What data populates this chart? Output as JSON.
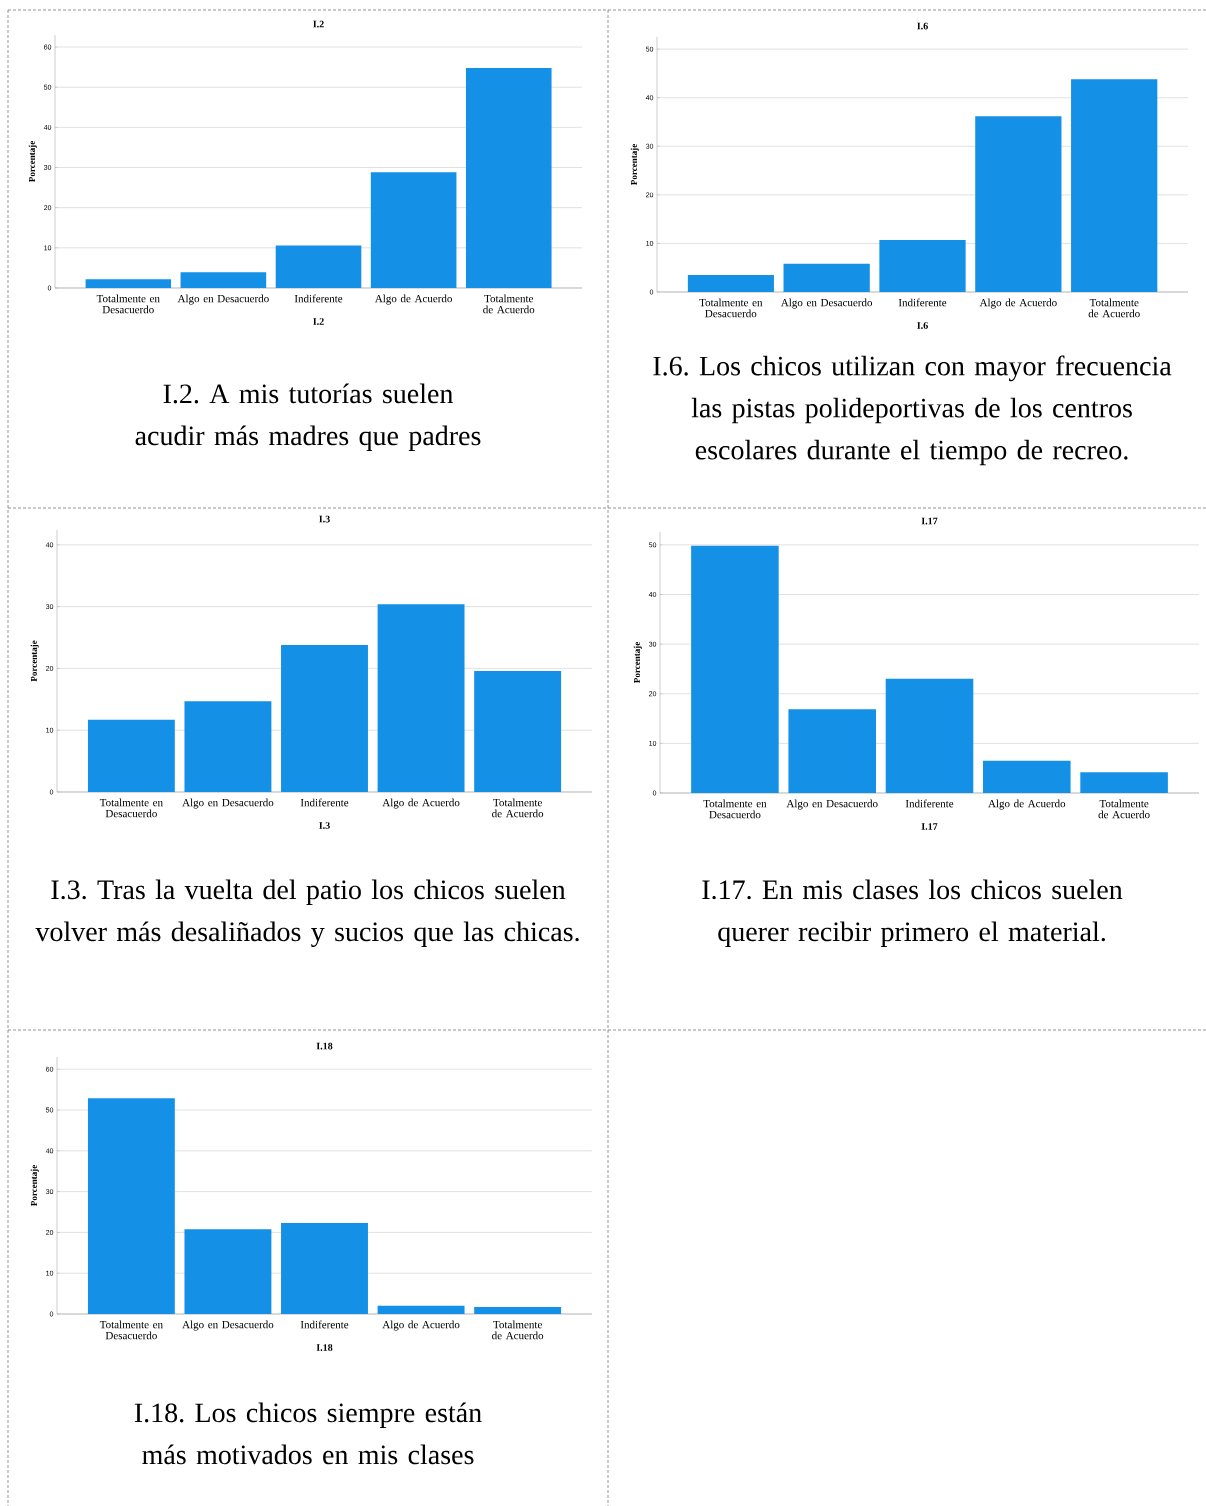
{
  "chart_data": [
    {
      "type": "bar",
      "title": "I.2",
      "xlabel": "I.2",
      "ylabel": "Porcentaje",
      "categories": [
        "Totalmente en Desacuerdo",
        "Algo en Desacuerdo",
        "Indiferente",
        "Algo de Acuerdo",
        "Totalmente de Acuerdo"
      ],
      "values": [
        2.2,
        3.9,
        10.6,
        28.8,
        54.8
      ],
      "color": "#1490e6",
      "ylim": [
        0,
        63
      ],
      "yticks": [
        0,
        10,
        20,
        30,
        40,
        50,
        60
      ],
      "grid": "y",
      "annotations": [
        "I.2. A mis tutorías suelen acudir más madres que padres"
      ]
    },
    {
      "type": "bar",
      "title": "I.6",
      "xlabel": "I.6",
      "ylabel": "Porcentaje",
      "categories": [
        "Totalmente en Desacuerdo",
        "Algo en Desacuerdo",
        "Indiferente",
        "Algo de Acuerdo",
        "Totalmente de Acuerdo"
      ],
      "values": [
        3.5,
        5.8,
        10.7,
        36.2,
        43.8
      ],
      "color": "#1490e6",
      "ylim": [
        0,
        52.5
      ],
      "yticks": [
        0,
        10,
        20,
        30,
        40,
        50
      ],
      "grid": "y",
      "annotations": [
        "I.6. Los chicos utilizan con mayor frecuencia las pistas polideportivas de los centros escolares durante el tiempo de recreo."
      ]
    },
    {
      "type": "bar",
      "title": "I.3",
      "xlabel": "I.3",
      "ylabel": "Porcentaje",
      "categories": [
        "Totalmente en Desacuerdo",
        "Algo en Desacuerdo",
        "Indiferente",
        "Algo de Acuerdo",
        "Totalmente de Acuerdo"
      ],
      "values": [
        11.7,
        14.7,
        23.8,
        30.4,
        19.6
      ],
      "color": "#1490e6",
      "ylim": [
        0,
        42.4
      ],
      "yticks": [
        0,
        10,
        20,
        30,
        40
      ],
      "grid": "y",
      "annotations": [
        "I.3. Tras la vuelta del patio los chicos suelen volver más desaliñados y sucios que las chicas."
      ]
    },
    {
      "type": "bar",
      "title": "I.17",
      "xlabel": "I.17",
      "ylabel": "Porcentaje",
      "categories": [
        "Totalmente en Desacuerdo",
        "Algo en Desacuerdo",
        "Indiferente",
        "Algo de Acuerdo",
        "Totalmente de Acuerdo"
      ],
      "values": [
        49.8,
        16.9,
        23.0,
        6.5,
        4.2
      ],
      "color": "#1490e6",
      "ylim": [
        0,
        52.6
      ],
      "yticks": [
        0,
        10,
        20,
        30,
        40,
        50
      ],
      "grid": "y",
      "annotations": [
        "I.17. En mis clases los chicos suelen querer recibir primero el material."
      ]
    },
    {
      "type": "bar",
      "title": "I.18",
      "xlabel": "I.18",
      "ylabel": "Porcentaje",
      "categories": [
        "Totalmente en Desacuerdo",
        "Algo en Desacuerdo",
        "Indiferente",
        "Algo de Acuerdo",
        "Totalmente de Acuerdo"
      ],
      "values": [
        52.9,
        20.8,
        22.3,
        2.0,
        1.7
      ],
      "color": "#1490e6",
      "ylim": [
        0,
        63
      ],
      "yticks": [
        0,
        10,
        20,
        30,
        40,
        50,
        60
      ],
      "grid": "y",
      "annotations": [
        "I.18. Los chicos siempre están más motivados en mis clases"
      ]
    }
  ]
}
